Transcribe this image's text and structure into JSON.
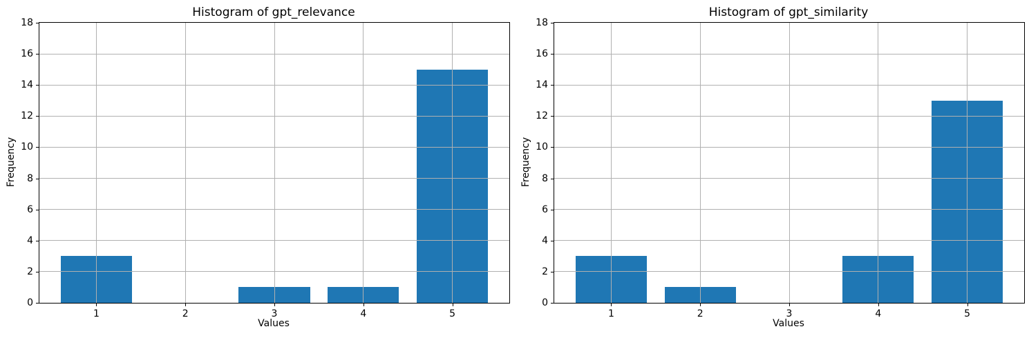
{
  "figure": {
    "background": "#ffffff",
    "text_color": "#000000",
    "frame_color": "#000000"
  },
  "chart_data": [
    {
      "type": "bar",
      "title": "Histogram of gpt_relevance",
      "xlabel": "Values",
      "ylabel": "Frequency",
      "categories": [
        1,
        2,
        3,
        4,
        5
      ],
      "values": [
        3,
        0,
        1,
        1,
        15
      ],
      "xticks": [
        1,
        2,
        3,
        4,
        5
      ],
      "yticks": [
        0,
        2,
        4,
        6,
        8,
        10,
        12,
        14,
        16,
        18
      ],
      "ylim": [
        0,
        18
      ],
      "bar_color": "#1f77b4",
      "grid": true,
      "grid_color": "#b0b0b0",
      "grid_above_bars": true,
      "legend": "none"
    },
    {
      "type": "bar",
      "title": "Histogram of gpt_similarity",
      "xlabel": "Values",
      "ylabel": "Frequency",
      "categories": [
        1,
        2,
        3,
        4,
        5
      ],
      "values": [
        3,
        1,
        0,
        3,
        13
      ],
      "xticks": [
        1,
        2,
        3,
        4,
        5
      ],
      "yticks": [
        0,
        2,
        4,
        6,
        8,
        10,
        12,
        14,
        16,
        18
      ],
      "ylim": [
        0,
        18
      ],
      "bar_color": "#1f77b4",
      "grid": true,
      "grid_color": "#b0b0b0",
      "grid_above_bars": true,
      "legend": "none"
    }
  ]
}
